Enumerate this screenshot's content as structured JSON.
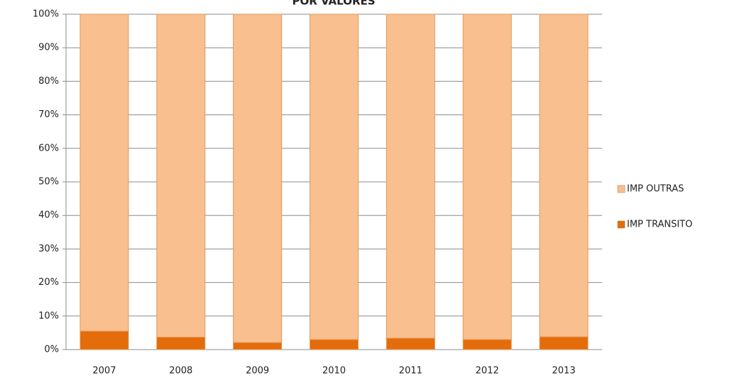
{
  "chart_data": {
    "type": "stacked_bar_percent",
    "title": "POR VALORES",
    "categories": [
      "2007",
      "2008",
      "2009",
      "2010",
      "2011",
      "2012",
      "2013"
    ],
    "series": [
      {
        "name": "IMP TRANSITO",
        "color": "#e46c0a",
        "values": [
          5.5,
          3.7,
          2.1,
          3.0,
          3.4,
          3.0,
          3.8
        ]
      },
      {
        "name": "IMP OUTRAS",
        "color": "#f9bf8f",
        "values": [
          94.5,
          96.3,
          97.9,
          97.0,
          96.6,
          97.0,
          96.2
        ]
      }
    ],
    "ylim": [
      0,
      100
    ],
    "yticks": [
      {
        "value": 0,
        "label": "0%"
      },
      {
        "value": 10,
        "label": "10%"
      },
      {
        "value": 20,
        "label": "20%"
      },
      {
        "value": 30,
        "label": "30%"
      },
      {
        "value": 40,
        "label": "40%"
      },
      {
        "value": 50,
        "label": "50%"
      },
      {
        "value": 60,
        "label": "60%"
      },
      {
        "value": 70,
        "label": "70%"
      },
      {
        "value": 80,
        "label": "80%"
      },
      {
        "value": 90,
        "label": "90%"
      },
      {
        "value": 100,
        "label": "100%"
      }
    ],
    "grid": true,
    "legend": "right"
  }
}
